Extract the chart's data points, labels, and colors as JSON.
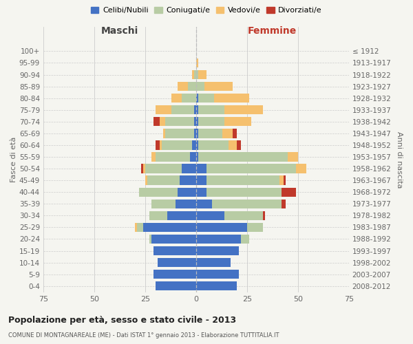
{
  "age_groups": [
    "0-4",
    "5-9",
    "10-14",
    "15-19",
    "20-24",
    "25-29",
    "30-34",
    "35-39",
    "40-44",
    "45-49",
    "50-54",
    "55-59",
    "60-64",
    "65-69",
    "70-74",
    "75-79",
    "80-84",
    "85-89",
    "90-94",
    "95-99",
    "100+"
  ],
  "birth_years": [
    "2008-2012",
    "2003-2007",
    "1998-2002",
    "1993-1997",
    "1988-1992",
    "1983-1987",
    "1978-1982",
    "1973-1977",
    "1968-1972",
    "1963-1967",
    "1958-1962",
    "1953-1957",
    "1948-1952",
    "1943-1947",
    "1938-1942",
    "1933-1937",
    "1928-1932",
    "1923-1927",
    "1918-1922",
    "1913-1917",
    "≤ 1912"
  ],
  "males": {
    "celibe": [
      20,
      21,
      19,
      21,
      22,
      26,
      14,
      10,
      9,
      8,
      7,
      3,
      2,
      1,
      1,
      1,
      0,
      0,
      0,
      0,
      0
    ],
    "coniugato": [
      0,
      0,
      0,
      0,
      1,
      3,
      9,
      12,
      19,
      16,
      18,
      17,
      15,
      14,
      14,
      11,
      7,
      4,
      1,
      0,
      0
    ],
    "vedovo": [
      0,
      0,
      0,
      0,
      0,
      1,
      0,
      0,
      0,
      1,
      1,
      2,
      1,
      1,
      3,
      8,
      5,
      5,
      1,
      0,
      0
    ],
    "divorziato": [
      0,
      0,
      0,
      0,
      0,
      0,
      0,
      0,
      0,
      0,
      1,
      0,
      2,
      0,
      3,
      0,
      0,
      0,
      0,
      0,
      0
    ]
  },
  "females": {
    "nubile": [
      20,
      21,
      17,
      21,
      22,
      25,
      14,
      8,
      5,
      5,
      5,
      1,
      1,
      1,
      1,
      1,
      1,
      0,
      0,
      0,
      0
    ],
    "coniugata": [
      0,
      0,
      0,
      0,
      4,
      8,
      19,
      34,
      37,
      36,
      44,
      44,
      15,
      12,
      13,
      13,
      8,
      4,
      1,
      0,
      0
    ],
    "vedova": [
      0,
      0,
      0,
      0,
      0,
      0,
      0,
      0,
      0,
      2,
      5,
      5,
      4,
      5,
      13,
      19,
      17,
      14,
      4,
      1,
      0
    ],
    "divorziata": [
      0,
      0,
      0,
      0,
      0,
      0,
      1,
      2,
      7,
      1,
      0,
      0,
      2,
      2,
      0,
      0,
      0,
      0,
      0,
      0,
      0
    ]
  },
  "colors": {
    "celibe": "#4472c4",
    "coniugato": "#b8cca4",
    "vedovo": "#f5c06e",
    "divorziato": "#c0392b"
  },
  "xlim": 75,
  "title": "Popolazione per età, sesso e stato civile - 2013",
  "subtitle": "COMUNE DI MONTAGNAREALE (ME) - Dati ISTAT 1° gennaio 2013 - Elaborazione TUTTITALIA.IT",
  "ylabel_left": "Fasce di età",
  "ylabel_right": "Anni di nascita",
  "xlabel_left": "Maschi",
  "xlabel_right": "Femmine",
  "bg_color": "#f5f5f0",
  "grid_color": "#cccccc"
}
